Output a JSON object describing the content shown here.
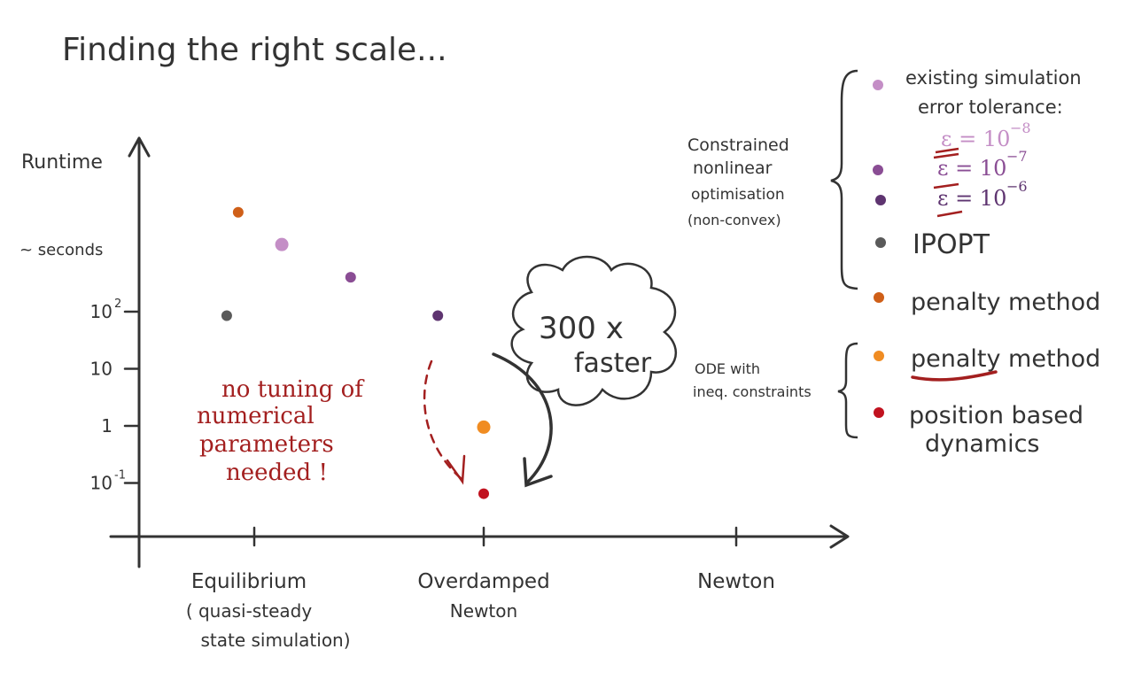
{
  "chart_data": {
    "type": "scatter",
    "title": "Finding the right scale...",
    "ylabel": "Runtime",
    "yscale": "log",
    "y_annotation": "~ seconds",
    "y_ticks": [
      {
        "value": 100,
        "base": "10",
        "exp": "2"
      },
      {
        "value": 10,
        "base": "10",
        "exp": ""
      },
      {
        "value": 1,
        "base": "1",
        "exp": ""
      },
      {
        "value": 0.1,
        "base": "10",
        "exp": "-1"
      }
    ],
    "categories": [
      {
        "line1": "Equilibrium",
        "line2": "( quasi-steady",
        "line3": "state simulation)"
      },
      {
        "line1": "Overdamped",
        "line2": "Newton",
        "line3": ""
      },
      {
        "line1": "Newton",
        "line2": "",
        "line3": ""
      }
    ],
    "series": [
      {
        "key": "eps8",
        "color": "#c48ec6",
        "points": [
          {
            "x": 0.12,
            "y": 1500
          }
        ]
      },
      {
        "key": "eps7",
        "color": "#8a4d94",
        "points": [
          {
            "x": 0.42,
            "y": 400
          }
        ]
      },
      {
        "key": "eps6",
        "color": "#5e3470",
        "points": [
          {
            "x": 0.8,
            "y": 85
          }
        ]
      },
      {
        "key": "ipopt",
        "color": "#5a5a5a",
        "points": [
          {
            "x": -0.12,
            "y": 85
          }
        ]
      },
      {
        "key": "penalty_c",
        "color": "#cf5f18",
        "points": [
          {
            "x": -0.07,
            "y": 5500
          }
        ]
      },
      {
        "key": "penalty_o",
        "color": "#f08c22",
        "points": [
          {
            "x": 1.0,
            "y": 0.95
          }
        ]
      },
      {
        "key": "pbd",
        "color": "#c1121f",
        "points": [
          {
            "x": 1.0,
            "y": 0.065
          }
        ]
      }
    ]
  },
  "legend": {
    "group1_label": [
      "Constrained",
      "nonlinear",
      "optimisation",
      "(non-convex)"
    ],
    "group2_label": [
      "ODE with",
      "ineq. constraints"
    ],
    "items": {
      "existing_l1": "existing simulation",
      "existing_l2": "error tolerance:",
      "eps8": "ε = 10",
      "eps8_exp": "−8",
      "eps7": "ε = 10",
      "eps7_exp": "−7",
      "eps6": "ε = 10",
      "eps6_exp": "−6",
      "ipopt": "IPOPT",
      "penalty1": "penalty method",
      "penalty2": "penalty method",
      "pbd_l1": "position based",
      "pbd_l2": "dynamics"
    }
  },
  "annotations": {
    "speedup_l1": "300 x",
    "speedup_l2": "faster",
    "no_tuning": [
      "no tuning of",
      "numerical",
      "parameters",
      "needed !"
    ]
  },
  "colors": {
    "ink": "#333333",
    "accent_red": "#a31f1f",
    "eps8": "#c48ec6",
    "eps7": "#8a4d94",
    "eps6": "#5e3470",
    "ipopt": "#5a5a5a",
    "penalty_c": "#cf5f18",
    "penalty_o": "#f08c22",
    "pbd": "#c1121f"
  }
}
